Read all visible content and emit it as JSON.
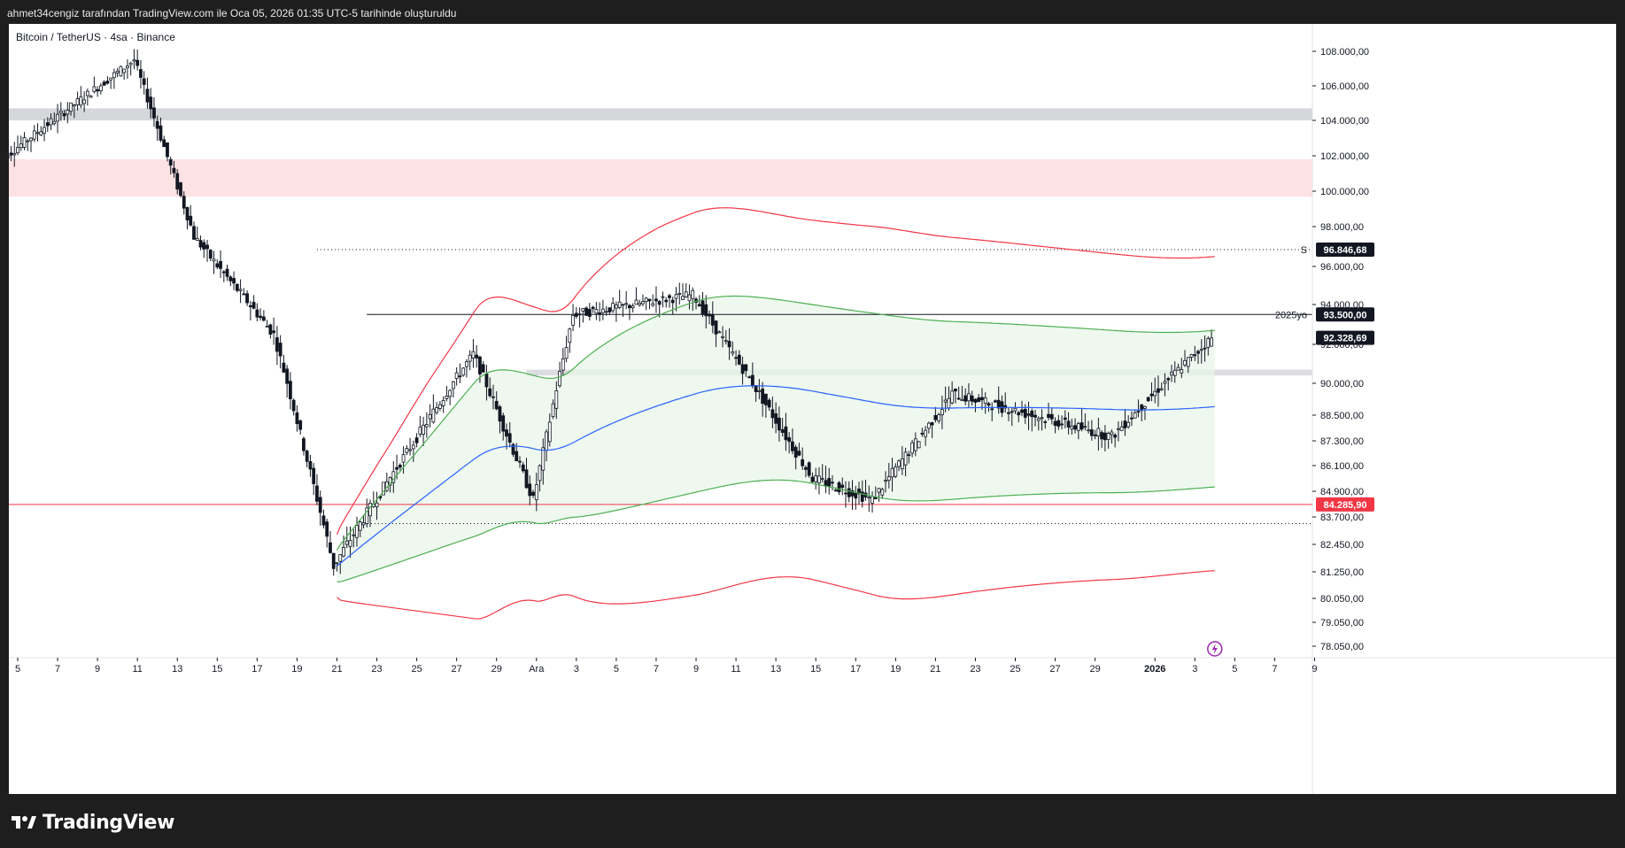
{
  "header": {
    "caption": "ahmet34cengiz tarafından TradingView.com ile Oca 05, 2026 01:35 UTC-5 tarihinde oluşturuldu"
  },
  "chart": {
    "symbol": "Bitcoin / TetherUS · 4sa · Binance"
  },
  "brand": {
    "name": "TradingView",
    "icon": "tradingview-logo-icon"
  },
  "colors": {
    "up": "#131722",
    "down": "#131722",
    "vwap": "#2962ff",
    "band_inner": "#4caf50",
    "band_outer": "#f23645",
    "support_line": "#f23645",
    "resistance_line": "#131722",
    "gray_zone": "#d1d4dc",
    "pink_zone": "#fde2e4",
    "green_fill": "#e8f5e9"
  },
  "chart_data": {
    "type": "candlestick",
    "title": "",
    "xlabel": "",
    "ylabel": "",
    "x_ticks": [
      "5",
      "7",
      "9",
      "11",
      "13",
      "15",
      "17",
      "19",
      "21",
      "23",
      "25",
      "27",
      "29",
      "Ara",
      "3",
      "5",
      "7",
      "9",
      "11",
      "13",
      "15",
      "17",
      "19",
      "21",
      "23",
      "25",
      "27",
      "29",
      "2026",
      "3",
      "5",
      "7",
      "9"
    ],
    "y_ticks": [
      "108.000,00",
      "106.000,00",
      "104.000,00",
      "102.000,00",
      "100.000,00",
      "98.000,00",
      "96.000,00",
      "94.000,00",
      "92.000,00",
      "90.000,00",
      "88.500,00",
      "87.300,00",
      "86.100,00",
      "84.900,00",
      "83.700,00",
      "82.450,00",
      "81.250,00",
      "80.050,00",
      "79.050,00",
      "78.050,00"
    ],
    "y_tick_values": [
      108000,
      106000,
      104000,
      102000,
      100000,
      98000,
      96000,
      94000,
      92000,
      90000,
      88500,
      87300,
      86100,
      84900,
      83700,
      82450,
      81250,
      80050,
      79050,
      78050
    ],
    "price_tags": [
      {
        "label": "96.846,68",
        "value": 96846.68,
        "style": "dark"
      },
      {
        "label": "93.500,00",
        "value": 93500,
        "style": "dark"
      },
      {
        "label": "92.328,69",
        "value": 92328.69,
        "style": "dark"
      },
      {
        "label": "84.285,90",
        "value": 84285.9,
        "style": "red"
      }
    ],
    "line_labels": [
      {
        "text": "S",
        "value": 96846.68
      },
      {
        "text": "2025yo",
        "value": 93500
      }
    ],
    "zones": [
      {
        "name": "gray-resistance-zone",
        "from": 104000,
        "to": 104700
      },
      {
        "name": "pink-supply-zone",
        "from": 99700,
        "to": 101800
      },
      {
        "name": "gray-mid-zone",
        "from": 90400,
        "to": 90700
      }
    ],
    "key_points": [
      {
        "date": "Nov 4",
        "price": 101500
      },
      {
        "date": "Nov 11",
        "price": 107500
      },
      {
        "date": "Nov 14",
        "price": 97500
      },
      {
        "date": "Nov 18",
        "price": 92500
      },
      {
        "date": "Nov 21",
        "price": 81500
      },
      {
        "date": "Nov 28",
        "price": 91500
      },
      {
        "date": "Dec 1",
        "price": 84500
      },
      {
        "date": "Dec 3",
        "price": 93500
      },
      {
        "date": "Dec 9",
        "price": 94500
      },
      {
        "date": "Dec 15",
        "price": 85500
      },
      {
        "date": "Dec 18",
        "price": 84500
      },
      {
        "date": "Dec 22",
        "price": 89500
      },
      {
        "date": "Dec 30",
        "price": 87500
      },
      {
        "date": "Jan 4",
        "price": 92300
      }
    ]
  }
}
